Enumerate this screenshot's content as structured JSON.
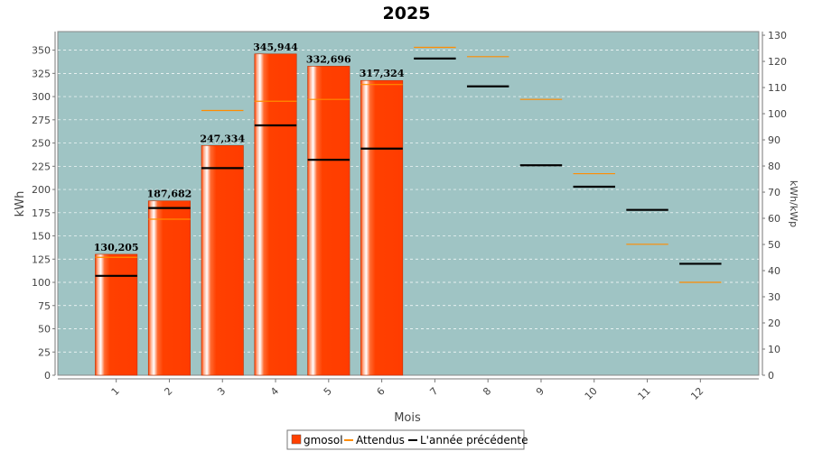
{
  "chart_data": {
    "type": "bar",
    "title": "2025",
    "xlabel": "Mois",
    "ylabel": "kWh",
    "y2label": "kWh/kWp",
    "categories": [
      "1",
      "2",
      "3",
      "4",
      "5",
      "6",
      "7",
      "8",
      "9",
      "10",
      "11",
      "12"
    ],
    "ylim": [
      0,
      370
    ],
    "y2lim": [
      0,
      131.4
    ],
    "yticks": [
      0,
      25,
      50,
      75,
      100,
      125,
      150,
      175,
      200,
      225,
      250,
      275,
      300,
      325,
      350
    ],
    "y2ticks": [
      0,
      10,
      20,
      30,
      40,
      50,
      60,
      70,
      80,
      90,
      100,
      110,
      120,
      130
    ],
    "series": [
      {
        "name": "gmosol",
        "kind": "bar",
        "color": "#ff4000",
        "values": [
          130.205,
          187.682,
          247.334,
          345.944,
          332.696,
          317.324,
          null,
          null,
          null,
          null,
          null,
          null
        ],
        "labels": [
          "130,205",
          "187,682",
          "247,334",
          "345,944",
          "332,696",
          "317,324",
          "",
          "",
          "",
          "",
          "",
          ""
        ]
      },
      {
        "name": "Attendus",
        "kind": "marker",
        "color": "#ff8c00",
        "values": [
          127,
          168,
          285,
          295,
          297,
          313,
          353,
          343,
          297,
          217,
          141,
          100
        ]
      },
      {
        "name": "L'année précédente",
        "kind": "marker",
        "color": "#000000",
        "values": [
          107,
          180,
          223,
          269,
          232,
          244,
          341,
          311,
          226,
          203,
          178,
          120
        ]
      }
    ],
    "grid": true,
    "legend": "bottom",
    "background": "#9fc4c4"
  }
}
